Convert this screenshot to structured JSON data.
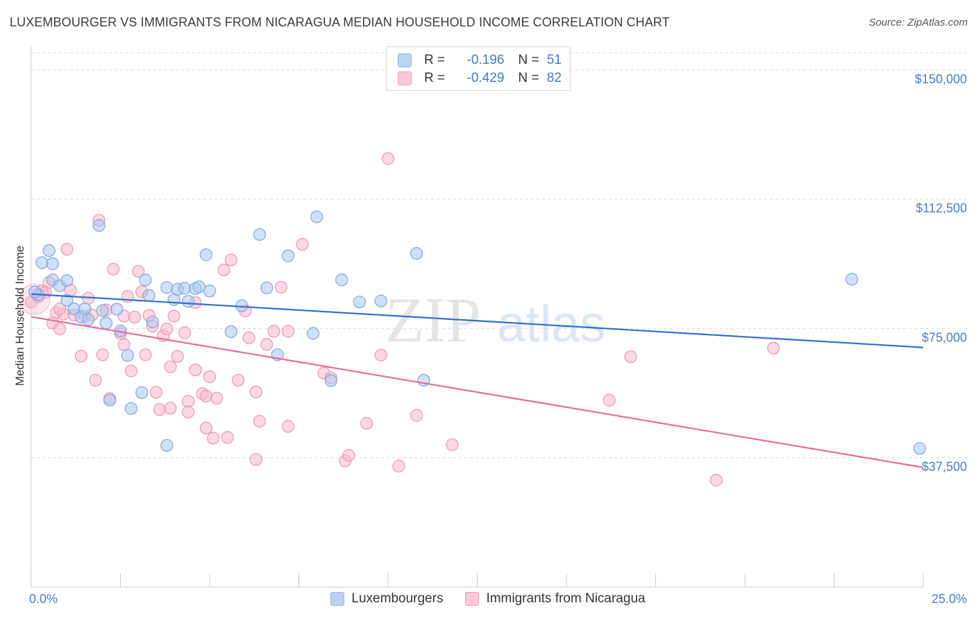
{
  "header": {
    "title": "LUXEMBOURGER VS IMMIGRANTS FROM NICARAGUA MEDIAN HOUSEHOLD INCOME CORRELATION CHART",
    "source": "Source: ZipAtlas.com"
  },
  "legend_top": {
    "rows": [
      {
        "r_label": "R =",
        "r_value": "-0.196",
        "n_label": "N =",
        "n_value": "51"
      },
      {
        "r_label": "R =",
        "r_value": "-0.429",
        "n_label": "N =",
        "n_value": "82"
      }
    ]
  },
  "legend_bottom": {
    "items": [
      {
        "label": "Luxembourgers"
      },
      {
        "label": "Immigrants from Nicaragua"
      }
    ]
  },
  "watermark": {
    "part1": "ZIP",
    "part2": "atlas"
  },
  "colors": {
    "blue_fill": "#a9c6f0",
    "blue_stroke": "#7ea6e3",
    "blue_line": "#2f6fce",
    "pink_fill": "#f7b8cc",
    "pink_stroke": "#ee94b2",
    "pink_line": "#e76c97",
    "grid": "#d9d9d9",
    "tick_text": "#4a7cc9"
  },
  "chart_data": {
    "type": "scatter",
    "title": "LUXEMBOURGER VS IMMIGRANTS FROM NICARAGUA MEDIAN HOUSEHOLD INCOME CORRELATION CHART",
    "xlabel": "",
    "ylabel": "Median Household Income",
    "xlim": [
      0,
      25
    ],
    "ylim": [
      0,
      155000
    ],
    "x_tick_labels": [
      "0.0%",
      "25.0%"
    ],
    "y_ticks": [
      37500,
      75000,
      112500,
      150000
    ],
    "y_tick_labels": [
      "$37,500",
      "$75,000",
      "$112,500",
      "$150,000"
    ],
    "grid": true,
    "series": [
      {
        "name": "Luxembourgers",
        "r": -0.196,
        "n": 51,
        "trend": {
          "x": [
            0,
            25
          ],
          "y": [
            85000,
            69500
          ]
        },
        "points": [
          [
            0.2,
            84800
          ],
          [
            0.3,
            94100
          ],
          [
            0.5,
            97600
          ],
          [
            0.6,
            93800
          ],
          [
            0.6,
            89100
          ],
          [
            0.8,
            87400
          ],
          [
            1.0,
            88900
          ],
          [
            1.0,
            83200
          ],
          [
            1.2,
            80700
          ],
          [
            1.4,
            78300
          ],
          [
            1.5,
            80700
          ],
          [
            1.6,
            77600
          ],
          [
            1.9,
            104900
          ],
          [
            2.0,
            80200
          ],
          [
            2.1,
            76600
          ],
          [
            2.2,
            54200
          ],
          [
            2.4,
            80600
          ],
          [
            2.5,
            74300
          ],
          [
            2.7,
            67200
          ],
          [
            2.8,
            51800
          ],
          [
            3.1,
            56400
          ],
          [
            3.2,
            89100
          ],
          [
            3.3,
            84600
          ],
          [
            3.4,
            76900
          ],
          [
            3.8,
            41100
          ],
          [
            3.8,
            86900
          ],
          [
            4.0,
            83400
          ],
          [
            4.1,
            86400
          ],
          [
            4.3,
            86700
          ],
          [
            4.4,
            82900
          ],
          [
            4.6,
            86600
          ],
          [
            4.7,
            87100
          ],
          [
            4.9,
            96400
          ],
          [
            5.0,
            85900
          ],
          [
            5.6,
            74100
          ],
          [
            5.9,
            81600
          ],
          [
            6.4,
            102300
          ],
          [
            6.6,
            86800
          ],
          [
            6.9,
            67400
          ],
          [
            7.2,
            96100
          ],
          [
            7.9,
            73600
          ],
          [
            8.0,
            107400
          ],
          [
            8.4,
            59900
          ],
          [
            8.7,
            89100
          ],
          [
            9.2,
            82700
          ],
          [
            9.8,
            83000
          ],
          [
            10.8,
            96800
          ],
          [
            11.0,
            60000
          ],
          [
            23.0,
            89300
          ],
          [
            24.9,
            40200
          ],
          [
            0.1,
            85600
          ]
        ]
      },
      {
        "name": "Immigrants from Nicaragua",
        "r": -0.429,
        "n": 82,
        "trend": {
          "x": [
            0,
            25
          ],
          "y": [
            78400,
            34700
          ]
        },
        "points": [
          [
            0.0,
            82700
          ],
          [
            0.2,
            84200
          ],
          [
            0.3,
            85900
          ],
          [
            0.4,
            85500
          ],
          [
            0.5,
            88400
          ],
          [
            0.6,
            76600
          ],
          [
            0.7,
            79600
          ],
          [
            0.8,
            74900
          ],
          [
            0.9,
            79200
          ],
          [
            1.0,
            98000
          ],
          [
            1.1,
            86100
          ],
          [
            1.2,
            78900
          ],
          [
            1.4,
            67000
          ],
          [
            1.5,
            78600
          ],
          [
            1.6,
            83800
          ],
          [
            1.7,
            78900
          ],
          [
            1.8,
            60000
          ],
          [
            1.9,
            106400
          ],
          [
            2.0,
            67400
          ],
          [
            2.1,
            80400
          ],
          [
            2.3,
            92200
          ],
          [
            2.5,
            73600
          ],
          [
            2.6,
            78600
          ],
          [
            2.6,
            70300
          ],
          [
            2.7,
            84300
          ],
          [
            2.8,
            62700
          ],
          [
            2.9,
            78300
          ],
          [
            3.0,
            91600
          ],
          [
            3.1,
            85700
          ],
          [
            3.2,
            67400
          ],
          [
            3.3,
            78800
          ],
          [
            3.4,
            75700
          ],
          [
            3.5,
            56500
          ],
          [
            3.6,
            51500
          ],
          [
            3.7,
            72900
          ],
          [
            3.8,
            74900
          ],
          [
            3.9,
            51900
          ],
          [
            4.0,
            78600
          ],
          [
            4.1,
            66900
          ],
          [
            4.3,
            73800
          ],
          [
            4.4,
            53900
          ],
          [
            4.4,
            50800
          ],
          [
            4.6,
            82500
          ],
          [
            4.6,
            63000
          ],
          [
            4.8,
            56100
          ],
          [
            4.9,
            55400
          ],
          [
            4.9,
            46100
          ],
          [
            5.0,
            61000
          ],
          [
            5.1,
            43200
          ],
          [
            5.2,
            54800
          ],
          [
            5.4,
            92000
          ],
          [
            5.5,
            43400
          ],
          [
            5.6,
            94900
          ],
          [
            5.8,
            60000
          ],
          [
            6.0,
            80100
          ],
          [
            6.1,
            72300
          ],
          [
            6.3,
            56600
          ],
          [
            6.3,
            37000
          ],
          [
            6.4,
            48100
          ],
          [
            6.6,
            70400
          ],
          [
            6.8,
            74200
          ],
          [
            7.0,
            87000
          ],
          [
            7.2,
            74200
          ],
          [
            7.6,
            99400
          ],
          [
            8.2,
            62100
          ],
          [
            8.4,
            60700
          ],
          [
            8.8,
            36600
          ],
          [
            8.9,
            38200
          ],
          [
            9.4,
            47500
          ],
          [
            9.8,
            67300
          ],
          [
            10.0,
            124300
          ],
          [
            10.3,
            35100
          ],
          [
            10.8,
            49800
          ],
          [
            11.8,
            41300
          ],
          [
            16.2,
            54200
          ],
          [
            16.8,
            66800
          ],
          [
            19.2,
            31000
          ],
          [
            20.8,
            69300
          ],
          [
            0.8,
            80700
          ],
          [
            2.2,
            54700
          ],
          [
            3.9,
            63900
          ],
          [
            7.2,
            46600
          ]
        ]
      }
    ]
  }
}
